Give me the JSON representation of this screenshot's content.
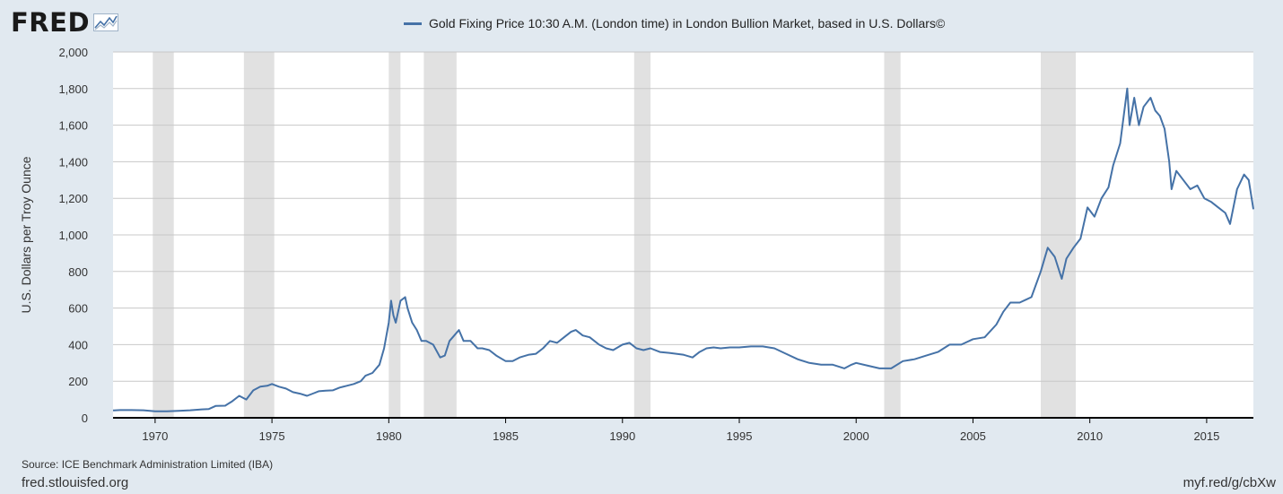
{
  "brand": {
    "logo_text": "FRED",
    "logo_icon": "line-chart-icon"
  },
  "legend": {
    "label": "Gold Fixing Price 10:30 A.M. (London time) in London Bullion Market, based in U.S. Dollars©",
    "color": "#4572a7"
  },
  "chart_data": {
    "type": "line",
    "title": "",
    "xlabel": "",
    "ylabel": "U.S. Dollars per Troy Ounce",
    "xlim": [
      1968.2,
      2017.0
    ],
    "ylim": [
      0,
      2000
    ],
    "y_ticks": [
      0,
      200,
      400,
      600,
      800,
      1000,
      1200,
      1400,
      1600,
      1800,
      2000
    ],
    "y_tick_labels": [
      "0",
      "200",
      "400",
      "600",
      "800",
      "1,000",
      "1,200",
      "1,400",
      "1,600",
      "1,800",
      "2,000"
    ],
    "x_ticks": [
      1970,
      1975,
      1980,
      1985,
      1990,
      1995,
      2000,
      2005,
      2010,
      2015
    ],
    "x_tick_labels": [
      "1970",
      "1975",
      "1980",
      "1985",
      "1990",
      "1995",
      "2000",
      "2005",
      "2010",
      "2015"
    ],
    "grid": "horizontal",
    "line_color": "#4572a7",
    "recessions": [
      [
        1969.9,
        1970.8
      ],
      [
        1973.8,
        1975.1
      ],
      [
        1980.0,
        1980.5
      ],
      [
        1981.5,
        1982.9
      ],
      [
        1990.5,
        1991.2
      ],
      [
        2001.2,
        2001.9
      ],
      [
        2007.9,
        2009.4
      ]
    ],
    "series": [
      {
        "name": "Gold Fixing Price 10:30 A.M. (London time) in London Bullion Market, based in U.S. Dollars©",
        "x": [
          1968.2,
          1968.5,
          1969.0,
          1969.5,
          1970.0,
          1970.5,
          1971.0,
          1971.5,
          1972.0,
          1972.3,
          1972.6,
          1973.0,
          1973.3,
          1973.6,
          1973.9,
          1974.2,
          1974.5,
          1974.8,
          1975.0,
          1975.3,
          1975.6,
          1975.9,
          1976.2,
          1976.5,
          1976.8,
          1977.0,
          1977.3,
          1977.6,
          1977.9,
          1978.2,
          1978.5,
          1978.8,
          1979.0,
          1979.3,
          1979.6,
          1979.8,
          1980.0,
          1980.1,
          1980.2,
          1980.3,
          1980.5,
          1980.7,
          1980.8,
          1981.0,
          1981.2,
          1981.4,
          1981.6,
          1981.9,
          1982.2,
          1982.4,
          1982.6,
          1982.8,
          1983.0,
          1983.2,
          1983.5,
          1983.8,
          1984.0,
          1984.3,
          1984.6,
          1985.0,
          1985.3,
          1985.6,
          1986.0,
          1986.3,
          1986.6,
          1986.9,
          1987.2,
          1987.5,
          1987.8,
          1988.0,
          1988.3,
          1988.6,
          1989.0,
          1989.3,
          1989.6,
          1990.0,
          1990.3,
          1990.6,
          1990.9,
          1991.2,
          1991.6,
          1992.0,
          1992.3,
          1992.6,
          1993.0,
          1993.3,
          1993.6,
          1993.9,
          1994.2,
          1994.6,
          1995.0,
          1995.5,
          1996.0,
          1996.5,
          1997.0,
          1997.5,
          1998.0,
          1998.5,
          1999.0,
          1999.5,
          1999.8,
          2000.0,
          2000.5,
          2001.0,
          2001.5,
          2002.0,
          2002.5,
          2003.0,
          2003.5,
          2004.0,
          2004.5,
          2005.0,
          2005.5,
          2006.0,
          2006.3,
          2006.6,
          2007.0,
          2007.5,
          2007.9,
          2008.2,
          2008.5,
          2008.8,
          2009.0,
          2009.3,
          2009.6,
          2009.9,
          2010.2,
          2010.5,
          2010.8,
          2011.0,
          2011.3,
          2011.6,
          2011.7,
          2011.9,
          2012.1,
          2012.3,
          2012.6,
          2012.8,
          2013.0,
          2013.2,
          2013.4,
          2013.5,
          2013.7,
          2014.0,
          2014.3,
          2014.6,
          2014.9,
          2015.2,
          2015.5,
          2015.8,
          2016.0,
          2016.3,
          2016.6,
          2016.8,
          2017.0
        ],
        "values": [
          40,
          42,
          42,
          41,
          36,
          36,
          38,
          41,
          46,
          48,
          65,
          66,
          90,
          120,
          100,
          150,
          170,
          175,
          185,
          170,
          160,
          140,
          132,
          120,
          135,
          145,
          148,
          150,
          165,
          175,
          185,
          200,
          230,
          245,
          290,
          380,
          520,
          640,
          560,
          520,
          640,
          660,
          600,
          520,
          480,
          420,
          420,
          400,
          330,
          340,
          420,
          450,
          480,
          420,
          420,
          380,
          380,
          370,
          340,
          310,
          310,
          330,
          345,
          350,
          380,
          420,
          410,
          440,
          470,
          480,
          450,
          440,
          400,
          380,
          370,
          400,
          410,
          380,
          370,
          380,
          360,
          355,
          350,
          345,
          330,
          360,
          380,
          385,
          380,
          385,
          385,
          390,
          390,
          380,
          350,
          320,
          300,
          290,
          290,
          270,
          290,
          300,
          285,
          270,
          270,
          310,
          320,
          340,
          360,
          400,
          400,
          430,
          440,
          510,
          580,
          630,
          630,
          660,
          800,
          930,
          880,
          760,
          870,
          930,
          980,
          1150,
          1100,
          1200,
          1260,
          1380,
          1500,
          1800,
          1600,
          1750,
          1600,
          1700,
          1750,
          1680,
          1650,
          1580,
          1400,
          1250,
          1350,
          1300,
          1250,
          1270,
          1200,
          1180,
          1150,
          1120,
          1060,
          1250,
          1330,
          1300,
          1140
        ]
      }
    ]
  },
  "source": "Source: ICE Benchmark Administration Limited (IBA)",
  "footer": {
    "left": "fred.stlouisfed.org",
    "right": "myf.red/g/cbXw"
  }
}
